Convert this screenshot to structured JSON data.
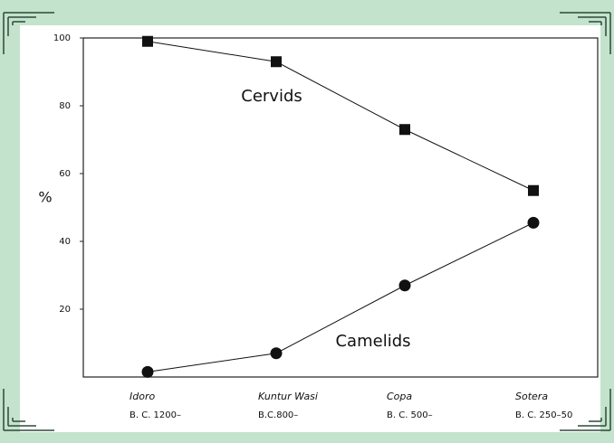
{
  "chart_data": {
    "type": "line",
    "categories": [
      "Idoro",
      "Kuntur Wasi",
      "Copa",
      "Sotera"
    ],
    "periods": [
      "B. C. 1200–",
      "B.C.800–",
      "B. C. 500–",
      "B. C. 250–50"
    ],
    "ylabel": "%",
    "ylim": [
      0,
      100
    ],
    "yticks": [
      20,
      40,
      60,
      80,
      100
    ],
    "series": [
      {
        "name": "Cervids",
        "color": "#111111",
        "marker": "square",
        "values": [
          99,
          93,
          73,
          55
        ]
      },
      {
        "name": "Camelids",
        "color": "#111111",
        "marker": "circle",
        "values": [
          1.5,
          7,
          27,
          45.5
        ]
      }
    ]
  }
}
